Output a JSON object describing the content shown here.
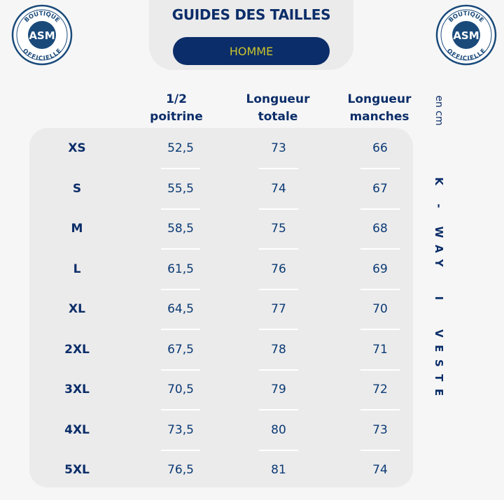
{
  "header": {
    "title": "GUIDES DES TAILLES",
    "category": "HOMME"
  },
  "logo": {
    "text_top": "BOUTIQUE",
    "text_bottom": "OFFICIELLE",
    "monogram": "ASM"
  },
  "table": {
    "unit": "en cm",
    "columns": [
      "1/2\npoitrine",
      "Longueur\ntotale",
      "Longueur\nmanches"
    ],
    "rows": [
      {
        "size": "XS",
        "poitrine": "52,5",
        "totale": "73",
        "manches": "66"
      },
      {
        "size": "S",
        "poitrine": "55,5",
        "totale": "74",
        "manches": "67"
      },
      {
        "size": "M",
        "poitrine": "58,5",
        "totale": "75",
        "manches": "68"
      },
      {
        "size": "L",
        "poitrine": "61,5",
        "totale": "76",
        "manches": "69"
      },
      {
        "size": "XL",
        "poitrine": "64,5",
        "totale": "77",
        "manches": "70"
      },
      {
        "size": "2XL",
        "poitrine": "67,5",
        "totale": "78",
        "manches": "71"
      },
      {
        "size": "3XL",
        "poitrine": "70,5",
        "totale": "79",
        "manches": "72"
      },
      {
        "size": "4XL",
        "poitrine": "73,5",
        "totale": "80",
        "manches": "73"
      },
      {
        "size": "5XL",
        "poitrine": "76,5",
        "totale": "81",
        "manches": "74"
      }
    ]
  },
  "product": "K - WAY  I  VESTE",
  "colors": {
    "navy": "#0b2d69",
    "accent_yellow": "#c9c42c",
    "panel": "#ebebeb",
    "background": "#f6f6f6"
  }
}
